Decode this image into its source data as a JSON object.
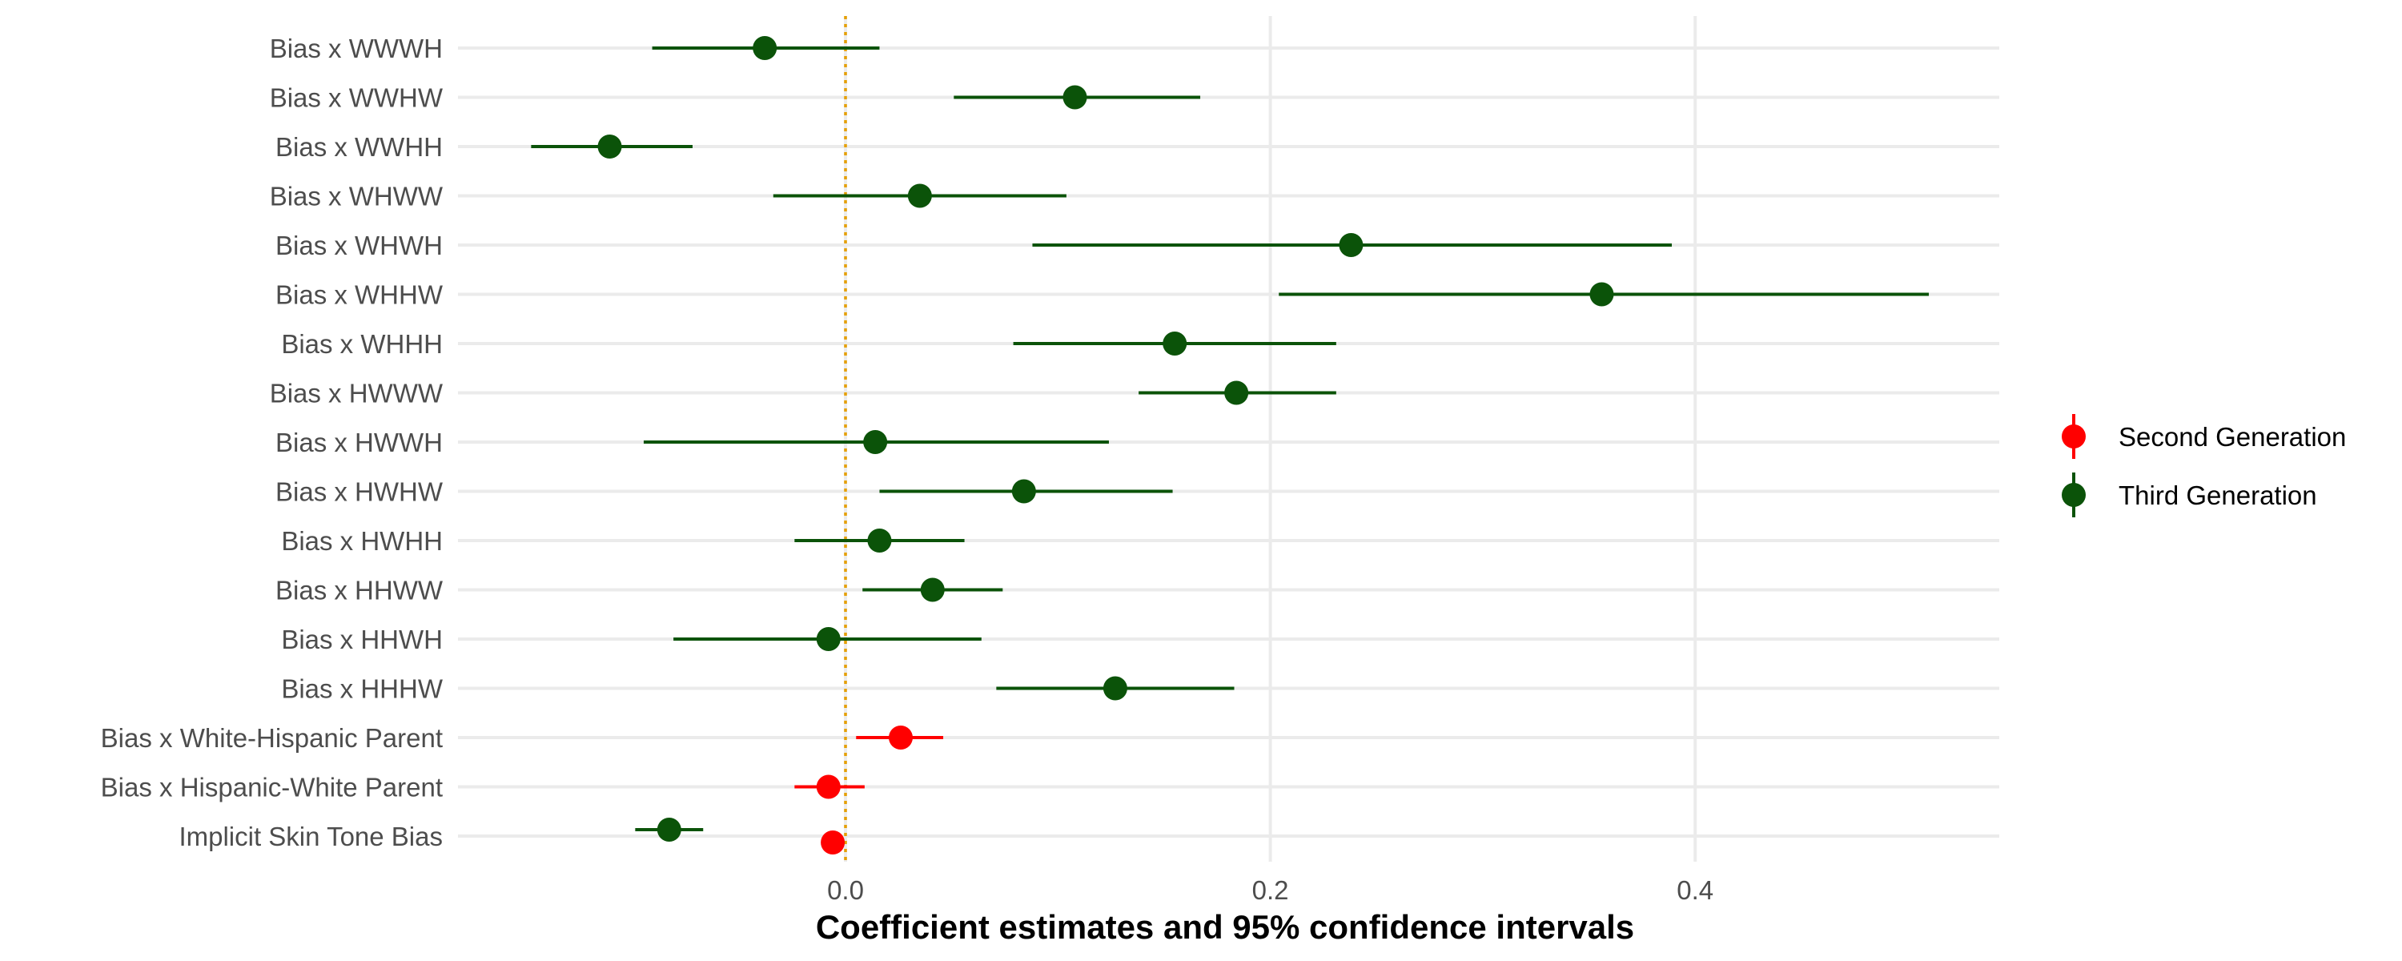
{
  "chart_data": {
    "type": "scatter",
    "subtype": "coefficient-plot",
    "title": "",
    "xlabel": "Coefficient estimates and 95% confidence intervals",
    "ylabel": "",
    "xlim": [
      -0.185,
      0.545
    ],
    "xticks": [
      0.0,
      0.2,
      0.4
    ],
    "xtick_labels": [
      "0.0",
      "0.2",
      "0.4"
    ],
    "reference_line": {
      "x": 0.0,
      "color": "#E69F00",
      "style": "dotted"
    },
    "grid": {
      "x_major": true,
      "y_major": true
    },
    "legend_position": "right",
    "categories": [
      "Bias x WWWH",
      "Bias x WWHW",
      "Bias x WWHH",
      "Bias x WHWW",
      "Bias x WHWH",
      "Bias x WHHW",
      "Bias x WHHH",
      "Bias x HWWW",
      "Bias x HWWH",
      "Bias x HWHW",
      "Bias x HWHH",
      "Bias x HHWW",
      "Bias x HHWH",
      "Bias x HHHW",
      "Bias x White-Hispanic Parent",
      "Bias x Hispanic-White Parent",
      "Implicit Skin Tone Bias"
    ],
    "series": [
      {
        "name": "Second Generation",
        "color": "#FF0000",
        "points": [
          {
            "category": "Bias x White-Hispanic Parent",
            "estimate": 0.026,
            "lower": 0.005,
            "upper": 0.046
          },
          {
            "category": "Bias x Hispanic-White Parent",
            "estimate": -0.008,
            "lower": -0.024,
            "upper": 0.009
          },
          {
            "category": "Implicit Skin Tone Bias",
            "estimate": -0.006,
            "lower": -0.009,
            "upper": -0.003
          }
        ]
      },
      {
        "name": "Third Generation",
        "color": "#0B5309",
        "points": [
          {
            "category": "Bias x WWWH",
            "estimate": -0.038,
            "lower": -0.091,
            "upper": 0.016
          },
          {
            "category": "Bias x WWHW",
            "estimate": 0.108,
            "lower": 0.051,
            "upper": 0.167
          },
          {
            "category": "Bias x WWHH",
            "estimate": -0.111,
            "lower": -0.148,
            "upper": -0.072
          },
          {
            "category": "Bias x WHWW",
            "estimate": 0.035,
            "lower": -0.034,
            "upper": 0.104
          },
          {
            "category": "Bias x WHWH",
            "estimate": 0.238,
            "lower": 0.088,
            "upper": 0.389
          },
          {
            "category": "Bias x WHHW",
            "estimate": 0.356,
            "lower": 0.204,
            "upper": 0.51
          },
          {
            "category": "Bias x WHHH",
            "estimate": 0.155,
            "lower": 0.079,
            "upper": 0.231
          },
          {
            "category": "Bias x HWWW",
            "estimate": 0.184,
            "lower": 0.138,
            "upper": 0.231
          },
          {
            "category": "Bias x HWWH",
            "estimate": 0.014,
            "lower": -0.095,
            "upper": 0.124
          },
          {
            "category": "Bias x HWHW",
            "estimate": 0.084,
            "lower": 0.016,
            "upper": 0.154
          },
          {
            "category": "Bias x HWHH",
            "estimate": 0.016,
            "lower": -0.024,
            "upper": 0.056
          },
          {
            "category": "Bias x HHWW",
            "estimate": 0.041,
            "lower": 0.008,
            "upper": 0.074
          },
          {
            "category": "Bias x HHWH",
            "estimate": -0.008,
            "lower": -0.081,
            "upper": 0.064
          },
          {
            "category": "Bias x HHHW",
            "estimate": 0.127,
            "lower": 0.071,
            "upper": 0.183
          },
          {
            "category": "Implicit Skin Tone Bias",
            "estimate": -0.083,
            "lower": -0.099,
            "upper": -0.067
          }
        ]
      }
    ]
  }
}
